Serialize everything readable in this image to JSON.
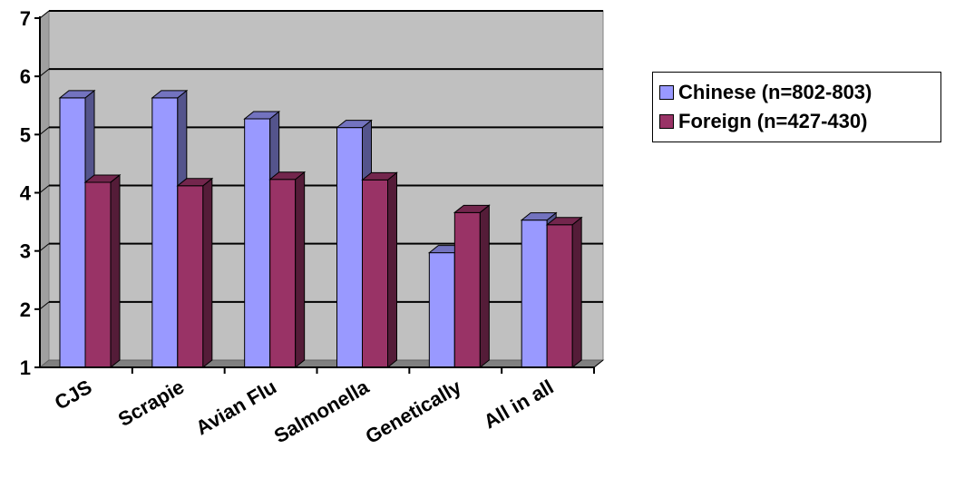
{
  "chart_data": {
    "type": "bar",
    "categories": [
      "CJS",
      "Scrapie",
      "Avian Flu",
      "Salmonella",
      "Genetically",
      "All in all"
    ],
    "series": [
      {
        "name": "Chinese (n=802-803)",
        "color": "#9999ff",
        "values": [
          5.63,
          5.63,
          5.27,
          5.12,
          2.97,
          3.53
        ]
      },
      {
        "name": "Foreign (n=427-430)",
        "color": "#993366",
        "values": [
          4.18,
          4.12,
          4.23,
          4.22,
          3.66,
          3.45
        ]
      }
    ],
    "xlabel": "",
    "ylabel": "",
    "ylim": [
      1,
      7
    ],
    "y_ticks": [
      "1",
      "2",
      "3",
      "4",
      "5",
      "6",
      "7"
    ],
    "grid": true,
    "three_d": true,
    "legend_position": "right",
    "plot_wall_color": "#c0c0c0"
  }
}
